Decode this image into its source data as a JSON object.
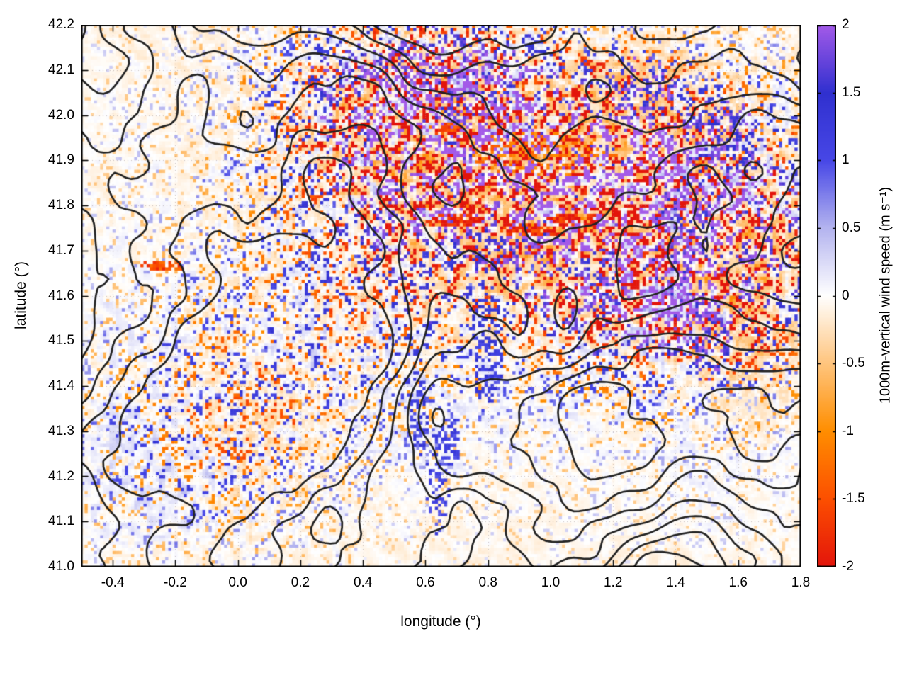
{
  "chart_data": {
    "type": "heatmap",
    "title": "",
    "xlabel": "longitude (°)",
    "ylabel": "latitude (°)",
    "xlim": [
      -0.5,
      1.8
    ],
    "ylim": [
      41.0,
      42.2
    ],
    "x_ticks": [
      -0.4,
      -0.2,
      0.0,
      0.2,
      0.4,
      0.6,
      0.8,
      1.0,
      1.2,
      1.4,
      1.6,
      1.8
    ],
    "x_tick_labels": [
      "-0.4",
      "-0.2",
      "0.0",
      "0.2",
      "0.4",
      "0.6",
      "0.8",
      "1.0",
      "1.2",
      "1.4",
      "1.6",
      "1.8"
    ],
    "y_ticks": [
      41.0,
      41.1,
      41.2,
      41.3,
      41.4,
      41.5,
      41.6,
      41.7,
      41.8,
      41.9,
      42.0,
      42.1,
      42.2
    ],
    "y_tick_labels": [
      "41.0",
      "41.1",
      "41.2",
      "41.3",
      "41.4",
      "41.5",
      "41.6",
      "41.7",
      "41.8",
      "41.9",
      "42.0",
      "42.1",
      "42.2"
    ],
    "grid": "dotted",
    "overlay": {
      "type": "contour",
      "color": "#222222",
      "description": "terrain height contours (black lines)"
    },
    "colorbar": {
      "label": "1000m-vertical wind speed (m s⁻¹)",
      "min": -2,
      "max": 2,
      "ticks": [
        -2,
        -1.5,
        -1,
        -0.5,
        0,
        0.5,
        1,
        1.5,
        2
      ],
      "tick_labels": [
        "-2",
        "-1.5",
        "-1",
        "-0.5",
        "0",
        "0.5",
        "1",
        "1.5",
        "2"
      ],
      "stops": [
        {
          "v": -2.0,
          "c": "#e3150b"
        },
        {
          "v": -1.5,
          "c": "#fc4f00"
        },
        {
          "v": -1.0,
          "c": "#ff8e00"
        },
        {
          "v": -0.5,
          "c": "#ffc57e"
        },
        {
          "v": 0.0,
          "c": "#ffffff"
        },
        {
          "v": 0.5,
          "c": "#b4b4ef"
        },
        {
          "v": 1.0,
          "c": "#4747e6"
        },
        {
          "v": 1.5,
          "c": "#3030cf"
        },
        {
          "v": 2.0,
          "c": "#a35ae8"
        }
      ]
    },
    "field_summary": "Mostly near-zero (white/pale) vertical wind speed with speckled strong up/downdrafts (±2 m/s) concentrated over mountainous terrain in the north and east; coherent orange/red downdraft streaks near lat 41.75, lon 0.7–1.1.",
    "regions": {
      "washes": [
        {
          "lon": 0.85,
          "lat": 41.75,
          "rlon": 0.55,
          "rlat": 0.3,
          "value": -0.3
        },
        {
          "lon": 1.25,
          "lat": 42.02,
          "rlon": 0.45,
          "rlat": 0.2,
          "value": -0.32
        },
        {
          "lon": 1.62,
          "lat": 41.6,
          "rlon": 0.28,
          "rlat": 0.38,
          "value": -0.25
        },
        {
          "lon": 0.45,
          "lat": 41.95,
          "rlon": 0.35,
          "rlat": 0.22,
          "value": -0.18
        },
        {
          "lon": 0.1,
          "lat": 41.3,
          "rlon": 0.4,
          "rlat": 0.25,
          "value": -0.12
        },
        {
          "lon": -0.3,
          "lat": 41.2,
          "rlon": 0.3,
          "rlat": 0.25,
          "value": 0.1
        },
        {
          "lon": 1.6,
          "lat": 41.15,
          "rlon": 0.35,
          "rlat": 0.2,
          "value": 0.08
        },
        {
          "lon": 0.55,
          "lat": 41.35,
          "rlon": 0.3,
          "rlat": 0.2,
          "value": 0.1
        },
        {
          "lon": -0.35,
          "lat": 41.55,
          "rlon": 0.2,
          "rlat": 0.25,
          "value": 0.08
        }
      ],
      "hotspots": [
        {
          "lon": 0.7,
          "lat": 41.765,
          "rlon": 0.1,
          "rlat": 0.016,
          "value": -1.95,
          "density": 0.85
        },
        {
          "lon": 0.93,
          "lat": 41.745,
          "rlon": 0.1,
          "rlat": 0.016,
          "value": -1.8,
          "density": 0.7
        },
        {
          "lon": 1.07,
          "lat": 41.77,
          "rlon": 0.09,
          "rlat": 0.014,
          "value": -1.85,
          "density": 0.75
        },
        {
          "lon": 0.88,
          "lat": 41.7,
          "rlon": 0.22,
          "rlat": 0.06,
          "value": 1.8,
          "density": 0.18
        },
        {
          "lon": 0.74,
          "lat": 42.03,
          "rlon": 0.2,
          "rlat": 0.1,
          "value": 1.9,
          "density": 0.28
        },
        {
          "lon": 0.52,
          "lat": 42.1,
          "rlon": 0.12,
          "rlat": 0.06,
          "value": 1.8,
          "density": 0.3
        },
        {
          "lon": 1.42,
          "lat": 41.72,
          "rlon": 0.1,
          "rlat": 0.2,
          "value": 1.9,
          "density": 0.35
        },
        {
          "lon": 1.5,
          "lat": 41.5,
          "rlon": 0.07,
          "rlat": 0.1,
          "value": 1.85,
          "density": 0.3
        },
        {
          "lon": 0.8,
          "lat": 41.48,
          "rlon": 0.05,
          "rlat": 0.15,
          "value": 1.3,
          "density": 0.4
        },
        {
          "lon": 0.64,
          "lat": 41.18,
          "rlon": 0.04,
          "rlat": 0.12,
          "value": 1.1,
          "density": 0.4
        },
        {
          "lon": -0.24,
          "lat": 41.665,
          "rlon": 0.08,
          "rlat": 0.012,
          "value": -1.6,
          "density": 0.8
        },
        {
          "lon": 0.97,
          "lat": 41.915,
          "rlon": 0.25,
          "rlat": 0.05,
          "value": -1.2,
          "density": 0.3
        },
        {
          "lon": 1.18,
          "lat": 41.62,
          "rlon": 0.06,
          "rlat": 0.1,
          "value": 1.6,
          "density": 0.35
        },
        {
          "lon": 1.55,
          "lat": 41.95,
          "rlon": 0.12,
          "rlat": 0.1,
          "value": 1.7,
          "density": 0.3
        },
        {
          "lon": 0.3,
          "lat": 42.07,
          "rlon": 0.1,
          "rlat": 0.05,
          "value": 1.6,
          "density": 0.3
        },
        {
          "lon": 0.58,
          "lat": 41.33,
          "rlon": 0.03,
          "rlat": 0.1,
          "value": 1.2,
          "density": 0.5
        },
        {
          "lon": 0.68,
          "lat": 41.28,
          "rlon": 0.03,
          "rlat": 0.08,
          "value": 1.1,
          "density": 0.5
        },
        {
          "lon": 0.66,
          "lat": 41.97,
          "rlon": 0.06,
          "rlat": 0.012,
          "value": -1.5,
          "density": 0.6
        },
        {
          "lon": 1.3,
          "lat": 42.06,
          "rlon": 0.12,
          "rlat": 0.07,
          "value": 1.8,
          "density": 0.3
        }
      ]
    }
  }
}
